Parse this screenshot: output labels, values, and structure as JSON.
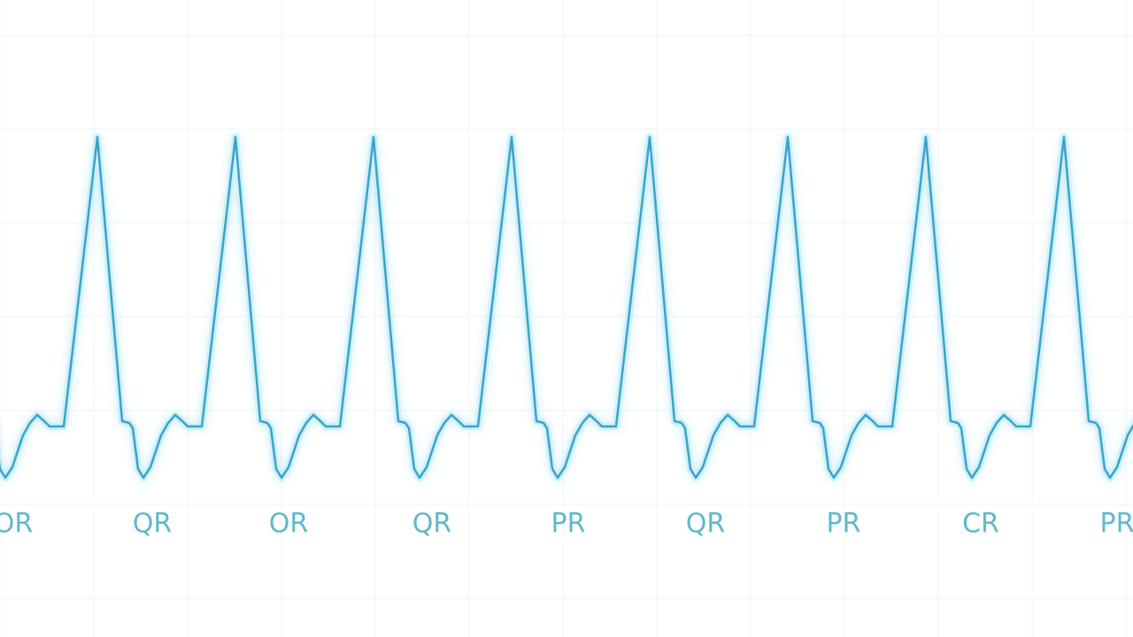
{
  "labels": [
    "OR",
    "QR",
    "OR",
    "QR",
    "PR",
    "QR",
    "PR",
    "CR",
    "PR"
  ]
}
